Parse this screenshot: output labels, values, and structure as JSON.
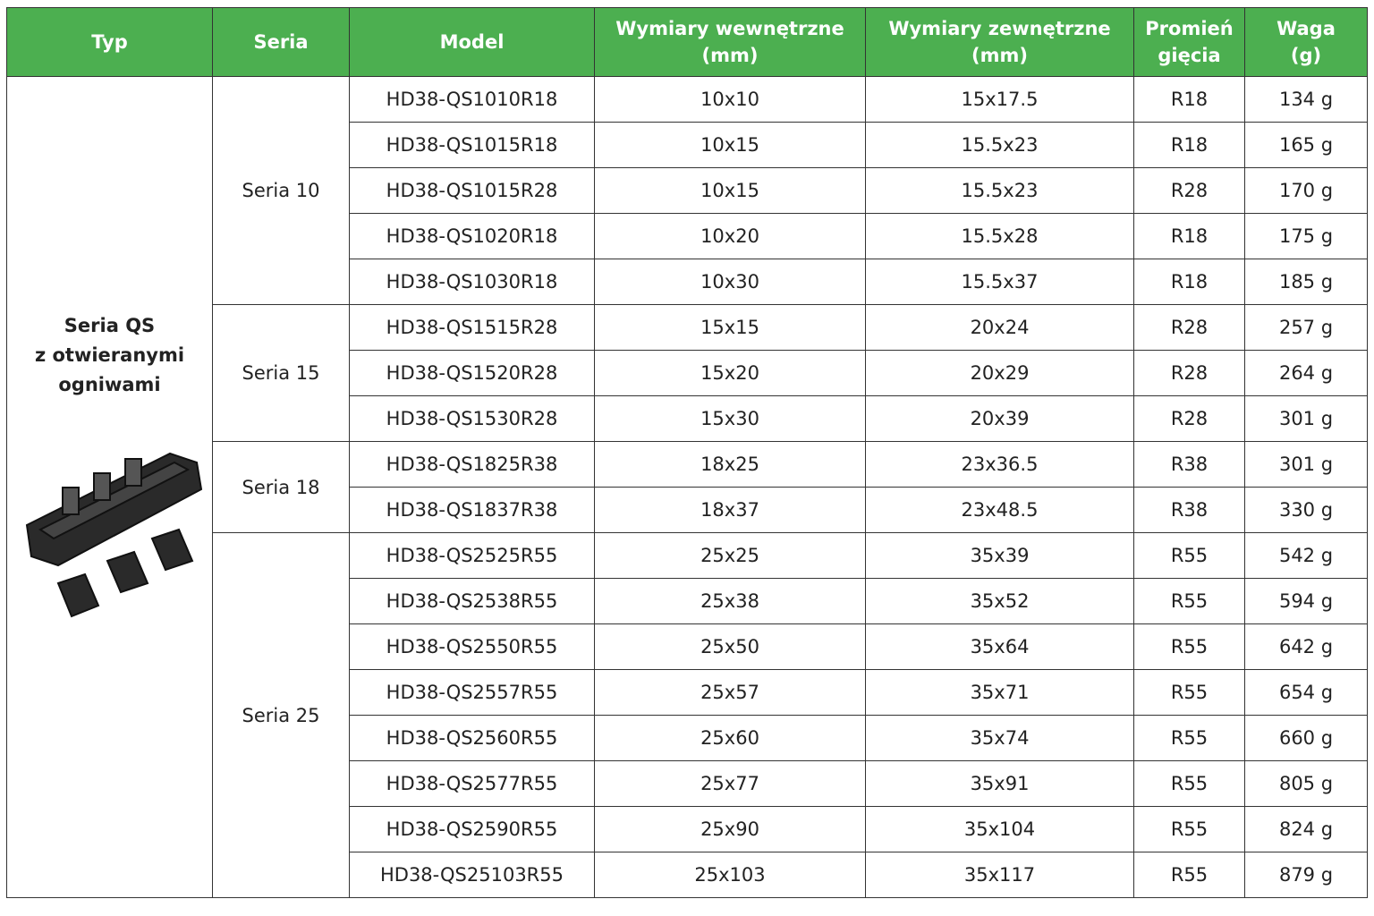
{
  "header": [
    "Typ",
    "Seria",
    "Model",
    "Wymiary wewnętrzne\n(mm)",
    "Wymiary zewnętrzne\n(mm)",
    "Promień\ngięcia",
    "Waga\n(g)"
  ],
  "type_label": "Seria QS\nz otwieranymi\nogniwami",
  "groups": [
    {
      "series": "Seria 10",
      "rows": [
        [
          "HD38-QS1010R18",
          "10x10",
          "15x17.5",
          "R18",
          "134 g"
        ],
        [
          "HD38-QS1015R18",
          "10x15",
          "15.5x23",
          "R18",
          "165 g"
        ],
        [
          "HD38-QS1015R28",
          "10x15",
          "15.5x23",
          "R28",
          "170 g"
        ],
        [
          "HD38-QS1020R18",
          "10x20",
          "15.5x28",
          "R18",
          "175 g"
        ],
        [
          "HD38-QS1030R18",
          "10x30",
          "15.5x37",
          "R18",
          "185 g"
        ]
      ]
    },
    {
      "series": "Seria 15",
      "rows": [
        [
          "HD38-QS1515R28",
          "15x15",
          "20x24",
          "R28",
          "257 g"
        ],
        [
          "HD38-QS1520R28",
          "15x20",
          "20x29",
          "R28",
          "264 g"
        ],
        [
          "HD38-QS1530R28",
          "15x30",
          "20x39",
          "R28",
          "301 g"
        ]
      ]
    },
    {
      "series": "Seria 18",
      "rows": [
        [
          "HD38-QS1825R38",
          "18x25",
          "23x36.5",
          "R38",
          "301 g"
        ],
        [
          "HD38-QS1837R38",
          "18x37",
          "23x48.5",
          "R38",
          "330 g"
        ]
      ]
    },
    {
      "series": "Seria 25",
      "rows": [
        [
          "HD38-QS2525R55",
          "25x25",
          "35x39",
          "R55",
          "542 g"
        ],
        [
          "HD38-QS2538R55",
          "25x38",
          "35x52",
          "R55",
          "594 g"
        ],
        [
          "HD38-QS2550R55",
          "25x50",
          "35x64",
          "R55",
          "642 g"
        ],
        [
          "HD38-QS2557R55",
          "25x57",
          "35x71",
          "R55",
          "654 g"
        ],
        [
          "HD38-QS2560R55",
          "25x60",
          "35x74",
          "R55",
          "660 g"
        ],
        [
          "HD38-QS2577R55",
          "25x77",
          "35x91",
          "R55",
          "805 g"
        ],
        [
          "HD38-QS2590R55",
          "25x90",
          "35x104",
          "R55",
          "824 g"
        ],
        [
          "HD38-QS25103R55",
          "25x103",
          "35x117",
          "R55",
          "879 g"
        ]
      ]
    }
  ]
}
